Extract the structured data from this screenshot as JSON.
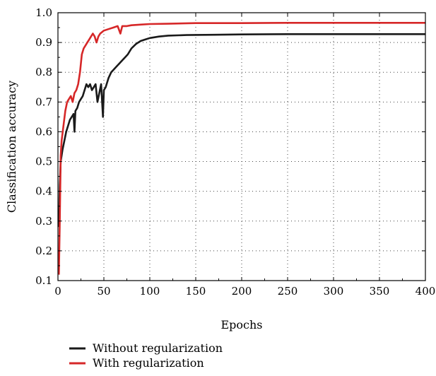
{
  "chart_data": {
    "type": "line",
    "xlabel": "Epochs",
    "ylabel": "Classification accuracy",
    "xlim": [
      0,
      400
    ],
    "ylim": [
      0.1,
      1.0
    ],
    "xticks": [
      "0",
      "50",
      "100",
      "150",
      "200",
      "250",
      "300",
      "350",
      "400"
    ],
    "yticks": [
      "0.1",
      "0.2",
      "0.3",
      "0.4",
      "0.5",
      "0.6",
      "0.7",
      "0.8",
      "0.9",
      "1.0"
    ],
    "grid": true,
    "legend_position": "bottom",
    "series": [
      {
        "name": "Without regularization",
        "color": "#1a1a1a",
        "points": [
          [
            1,
            0.28
          ],
          [
            2,
            0.42
          ],
          [
            3,
            0.5
          ],
          [
            5,
            0.54
          ],
          [
            7,
            0.57
          ],
          [
            9,
            0.6
          ],
          [
            11,
            0.62
          ],
          [
            13,
            0.64
          ],
          [
            15,
            0.65
          ],
          [
            17,
            0.66
          ],
          [
            18,
            0.6
          ],
          [
            19,
            0.67
          ],
          [
            21,
            0.68
          ],
          [
            23,
            0.7
          ],
          [
            25,
            0.71
          ],
          [
            27,
            0.72
          ],
          [
            29,
            0.74
          ],
          [
            31,
            0.76
          ],
          [
            33,
            0.75
          ],
          [
            35,
            0.76
          ],
          [
            37,
            0.74
          ],
          [
            39,
            0.75
          ],
          [
            41,
            0.76
          ],
          [
            43,
            0.7
          ],
          [
            45,
            0.73
          ],
          [
            47,
            0.76
          ],
          [
            49,
            0.65
          ],
          [
            50,
            0.74
          ],
          [
            52,
            0.75
          ],
          [
            55,
            0.78
          ],
          [
            58,
            0.8
          ],
          [
            61,
            0.81
          ],
          [
            64,
            0.82
          ],
          [
            67,
            0.83
          ],
          [
            70,
            0.84
          ],
          [
            73,
            0.85
          ],
          [
            76,
            0.86
          ],
          [
            80,
            0.88
          ],
          [
            85,
            0.895
          ],
          [
            90,
            0.905
          ],
          [
            95,
            0.91
          ],
          [
            100,
            0.915
          ],
          [
            110,
            0.92
          ],
          [
            120,
            0.923
          ],
          [
            140,
            0.925
          ],
          [
            170,
            0.926
          ],
          [
            200,
            0.927
          ],
          [
            250,
            0.928
          ],
          [
            300,
            0.928
          ],
          [
            350,
            0.928
          ],
          [
            400,
            0.928
          ]
        ]
      },
      {
        "name": "With regularization",
        "color": "#d62728",
        "points": [
          [
            1,
            0.12
          ],
          [
            2,
            0.3
          ],
          [
            3,
            0.52
          ],
          [
            4,
            0.57
          ],
          [
            6,
            0.62
          ],
          [
            8,
            0.67
          ],
          [
            10,
            0.7
          ],
          [
            12,
            0.71
          ],
          [
            14,
            0.72
          ],
          [
            16,
            0.7
          ],
          [
            18,
            0.73
          ],
          [
            20,
            0.74
          ],
          [
            22,
            0.76
          ],
          [
            24,
            0.8
          ],
          [
            26,
            0.86
          ],
          [
            28,
            0.88
          ],
          [
            30,
            0.89
          ],
          [
            32,
            0.9
          ],
          [
            34,
            0.91
          ],
          [
            36,
            0.92
          ],
          [
            38,
            0.93
          ],
          [
            40,
            0.92
          ],
          [
            42,
            0.9
          ],
          [
            44,
            0.92
          ],
          [
            46,
            0.93
          ],
          [
            48,
            0.935
          ],
          [
            50,
            0.94
          ],
          [
            55,
            0.945
          ],
          [
            60,
            0.95
          ],
          [
            65,
            0.955
          ],
          [
            68,
            0.93
          ],
          [
            70,
            0.955
          ],
          [
            75,
            0.955
          ],
          [
            80,
            0.958
          ],
          [
            90,
            0.96
          ],
          [
            100,
            0.962
          ],
          [
            120,
            0.963
          ],
          [
            150,
            0.965
          ],
          [
            200,
            0.965
          ],
          [
            250,
            0.966
          ],
          [
            300,
            0.966
          ],
          [
            350,
            0.966
          ],
          [
            400,
            0.966
          ]
        ]
      }
    ]
  }
}
